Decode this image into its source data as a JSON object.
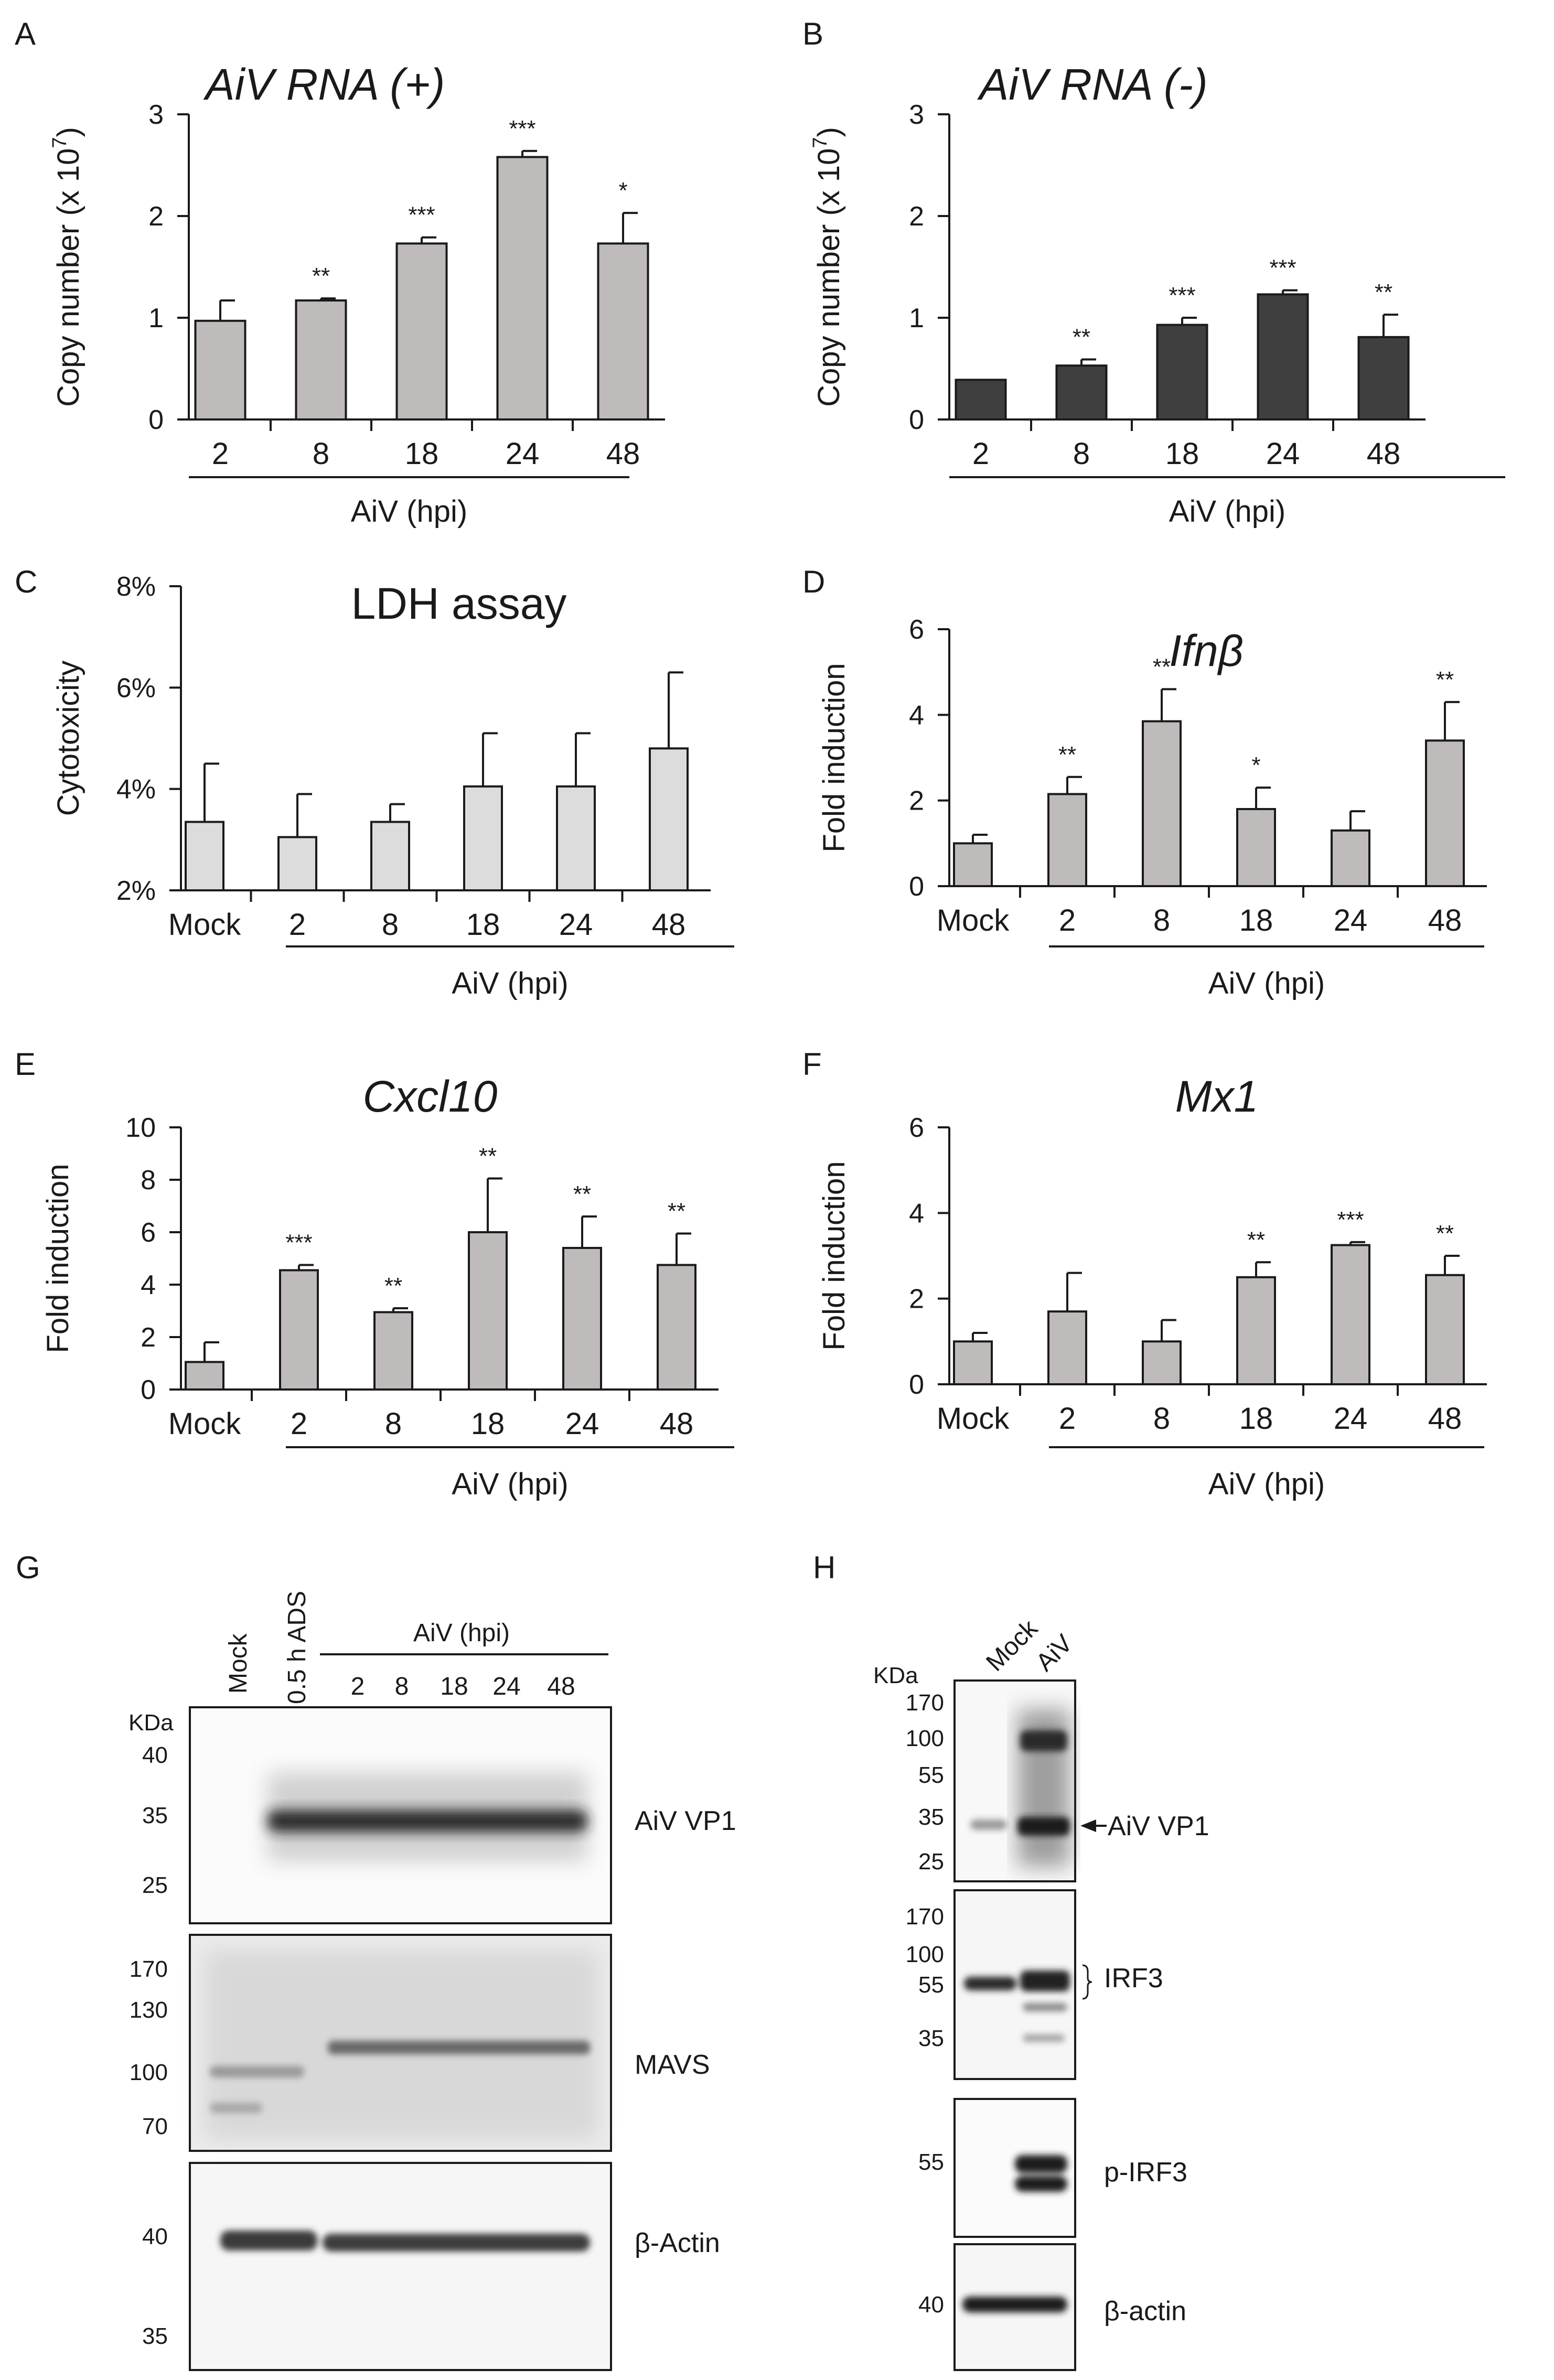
{
  "charts": [
    {
      "letter": "A",
      "title": "AiV RNA (+)",
      "italic": true,
      "ylabel_prefix": "Copy number (x 10",
      "ylabel_exp": "7",
      "ylabel_suffix": ")",
      "group_label": "AiV (hpi)",
      "yticks": [
        "0",
        "1",
        "2",
        "3"
      ],
      "bar_color": "#bfbbbb",
      "chart_data": {
        "type": "bar",
        "title": "AiV RNA (+)",
        "ylabel": "Copy number (x 10^7)",
        "xlabel": "AiV (hpi)",
        "ylim": [
          0,
          3
        ],
        "categories": [
          "2",
          "8",
          "18",
          "24",
          "48"
        ],
        "values": [
          0.97,
          1.17,
          1.73,
          2.58,
          1.73
        ],
        "errors": [
          0.2,
          0.02,
          0.06,
          0.06,
          0.3
        ],
        "significance": [
          "",
          "**",
          "***",
          "***",
          "*"
        ]
      }
    },
    {
      "letter": "B",
      "title": "AiV RNA (-)",
      "italic": true,
      "ylabel_prefix": "Copy number (x 10",
      "ylabel_exp": "7",
      "ylabel_suffix": ")",
      "group_label": "AiV (hpi)",
      "yticks": [
        "0",
        "1",
        "2",
        "3"
      ],
      "bar_color": "#3f3f3f",
      "chart_data": {
        "type": "bar",
        "title": "AiV RNA (-)",
        "ylabel": "Copy number (x 10^7)",
        "xlabel": "AiV (hpi)",
        "ylim": [
          0,
          3
        ],
        "categories": [
          "2",
          "8",
          "18",
          "24",
          "48"
        ],
        "values": [
          0.39,
          0.53,
          0.93,
          1.23,
          0.81
        ],
        "errors": [
          0,
          0.06,
          0.07,
          0.04,
          0.22
        ],
        "significance": [
          "",
          "**",
          "***",
          "***",
          "**"
        ]
      }
    },
    {
      "letter": "C",
      "title": "LDH assay",
      "italic": false,
      "ylabel": "Cytotoxicity",
      "group_label": "AiV (hpi)",
      "yticks": [
        "2%",
        "4%",
        "6%",
        "8%"
      ],
      "bar_color": "#dcdcdc",
      "chart_data": {
        "type": "bar",
        "title": "LDH assay",
        "ylabel": "Cytotoxicity",
        "xlabel": "AiV (hpi)",
        "ylim": [
          2,
          8
        ],
        "categories": [
          "Mock",
          "2",
          "8",
          "18",
          "24",
          "48"
        ],
        "values": [
          3.35,
          3.05,
          3.35,
          4.05,
          4.05,
          4.8
        ],
        "errors": [
          1.15,
          0.85,
          0.35,
          1.05,
          1.05,
          1.5
        ],
        "significance": [
          "",
          "",
          "",
          "",
          "",
          ""
        ]
      }
    },
    {
      "letter": "D",
      "title": "Ifnβ",
      "italic": true,
      "ylabel": "Fold induction",
      "group_label": "AiV (hpi)",
      "yticks": [
        "0",
        "2",
        "4",
        "6"
      ],
      "bar_color": "#bfbbbb",
      "chart_data": {
        "type": "bar",
        "title": "Ifnβ",
        "ylabel": "Fold induction",
        "xlabel": "AiV (hpi)",
        "ylim": [
          0,
          6
        ],
        "categories": [
          "Mock",
          "2",
          "8",
          "18",
          "24",
          "48"
        ],
        "values": [
          1.0,
          2.15,
          3.85,
          1.8,
          1.3,
          3.4
        ],
        "errors": [
          0.2,
          0.4,
          0.75,
          0.5,
          0.45,
          0.9
        ],
        "significance": [
          "",
          "**",
          "**",
          "*",
          "",
          "**"
        ]
      }
    },
    {
      "letter": "E",
      "title": "Cxcl10",
      "italic": true,
      "ylabel": "Fold induction",
      "group_label": "AiV (hpi)",
      "yticks": [
        "0",
        "2",
        "4",
        "6",
        "8",
        "10"
      ],
      "bar_color": "#bfbbbb",
      "chart_data": {
        "type": "bar",
        "title": "Cxcl10",
        "ylabel": "Fold induction",
        "xlabel": "AiV (hpi)",
        "ylim": [
          0,
          10
        ],
        "categories": [
          "Mock",
          "2",
          "8",
          "18",
          "24",
          "48"
        ],
        "values": [
          1.05,
          4.55,
          2.95,
          6.0,
          5.4,
          4.75
        ],
        "errors": [
          0.75,
          0.2,
          0.15,
          2.05,
          1.2,
          1.2
        ],
        "significance": [
          "",
          "***",
          "**",
          "**",
          "**",
          "**"
        ]
      }
    },
    {
      "letter": "F",
      "title": "Mx1",
      "italic": true,
      "ylabel": "Fold induction",
      "group_label": "AiV (hpi)",
      "yticks": [
        "0",
        "2",
        "4",
        "6"
      ],
      "bar_color": "#bfbbbb",
      "chart_data": {
        "type": "bar",
        "title": "Mx1",
        "ylabel": "Fold induction",
        "xlabel": "AiV (hpi)",
        "ylim": [
          0,
          6
        ],
        "categories": [
          "Mock",
          "2",
          "8",
          "18",
          "24",
          "48"
        ],
        "values": [
          1.0,
          1.7,
          1.0,
          2.5,
          3.25,
          2.55
        ],
        "errors": [
          0.2,
          0.9,
          0.5,
          0.35,
          0.07,
          0.45
        ],
        "significance": [
          "",
          "",
          "",
          "**",
          "***",
          "**"
        ]
      }
    }
  ],
  "blots": {
    "G": {
      "letter": "G",
      "lanes_single": [
        "Mock",
        "0.5 h ADS"
      ],
      "group_label": "AiV (hpi)",
      "lanes_group": [
        "2",
        "8",
        "18",
        "24",
        "48"
      ],
      "kda": "KDa",
      "panels": [
        {
          "label": "AiV VP1",
          "markers": [
            "40",
            "35",
            "25"
          ]
        },
        {
          "label": "MAVS",
          "markers": [
            "170",
            "130",
            "100",
            "70"
          ]
        },
        {
          "label": "β-Actin",
          "markers": [
            "40",
            "35"
          ]
        }
      ]
    },
    "H": {
      "letter": "H",
      "lanes": [
        "Mock",
        "AiV"
      ],
      "kda": "KDa",
      "panels": [
        {
          "label": "AiV VP1",
          "markers": [
            "170",
            "100",
            "55",
            "35",
            "25"
          ]
        },
        {
          "label": "IRF3",
          "markers": [
            "170",
            "100",
            "55",
            "35"
          ]
        },
        {
          "label": "p-IRF3",
          "markers": [
            "55"
          ]
        },
        {
          "label": "β-actin",
          "markers": [
            "40"
          ]
        }
      ]
    }
  }
}
